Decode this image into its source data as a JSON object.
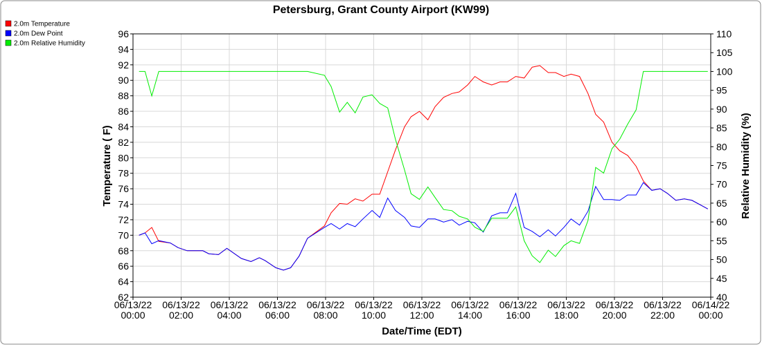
{
  "chart_data": {
    "type": "line",
    "title": "Petersburg, Grant County Airport (KW99)",
    "x_label": "Date/Time (EDT)",
    "y_label": "Temperature ( F)",
    "y2_label": "Relative Humidity (%)",
    "x": [
      0.25,
      0.5,
      0.78,
      1.07,
      1.55,
      1.87,
      2.25,
      2.9,
      3.15,
      3.55,
      3.9,
      4.5,
      4.9,
      5.25,
      5.5,
      5.93,
      6.25,
      6.55,
      6.9,
      7.25,
      7.95,
      8.23,
      8.58,
      8.9,
      9.23,
      9.55,
      9.93,
      10.25,
      10.58,
      10.9,
      11.28,
      11.55,
      11.9,
      12.25,
      12.55,
      12.9,
      13.25,
      13.55,
      13.9,
      14.2,
      14.55,
      14.9,
      15.25,
      15.55,
      15.9,
      16.25,
      16.58,
      16.9,
      17.25,
      17.55,
      17.9,
      18.2,
      18.55,
      18.9,
      19.22,
      19.55,
      19.9,
      20.22,
      20.55,
      20.9,
      21.2,
      21.55,
      21.9,
      22.2,
      22.55,
      22.9,
      23.22,
      23.88
    ],
    "xlim": [
      0,
      24
    ],
    "xticks": [
      {
        "value": 0,
        "label": "06/13/22\n00:00"
      },
      {
        "value": 2,
        "label": "06/13/22\n02:00"
      },
      {
        "value": 4,
        "label": "06/13/22\n04:00"
      },
      {
        "value": 6,
        "label": "06/13/22\n06:00"
      },
      {
        "value": 8,
        "label": "06/13/22\n08:00"
      },
      {
        "value": 10,
        "label": "06/13/22\n10:00"
      },
      {
        "value": 12,
        "label": "06/13/22\n12:00"
      },
      {
        "value": 14,
        "label": "06/13/22\n14:00"
      },
      {
        "value": 16,
        "label": "06/13/22\n16:00"
      },
      {
        "value": 18,
        "label": "06/13/22\n18:00"
      },
      {
        "value": 20,
        "label": "06/13/22\n20:00"
      },
      {
        "value": 22,
        "label": "06/13/22\n22:00"
      },
      {
        "value": 24,
        "label": "06/14/22\n00:00"
      }
    ],
    "ylim": [
      62,
      96
    ],
    "yticks": [
      62,
      64,
      66,
      68,
      70,
      72,
      74,
      76,
      78,
      80,
      82,
      84,
      86,
      88,
      90,
      92,
      94,
      96
    ],
    "y2lim": [
      40,
      110
    ],
    "y2ticks": [
      40,
      45,
      50,
      55,
      60,
      65,
      70,
      75,
      80,
      85,
      90,
      95,
      100,
      105,
      110
    ],
    "grid": true,
    "series": [
      {
        "name": "2.0m Temperature",
        "color": "#ff0000",
        "values": [
          70.0,
          70.3,
          71.0,
          69.2,
          69.0,
          68.4,
          68.0,
          68.0,
          67.6,
          67.5,
          68.3,
          67.0,
          66.6,
          67.1,
          66.7,
          65.8,
          65.5,
          65.8,
          67.3,
          69.6,
          71.2,
          72.9,
          74.1,
          74.0,
          74.7,
          74.4,
          75.3,
          75.3,
          78.2,
          81.0,
          84.0,
          85.3,
          86.0,
          84.9,
          86.6,
          87.8,
          88.3,
          88.5,
          89.4,
          90.5,
          89.8,
          89.4,
          89.8,
          89.8,
          90.5,
          90.3,
          91.7,
          91.9,
          91.0,
          91.0,
          90.5,
          90.8,
          90.5,
          88.3,
          85.6,
          84.6,
          82.0,
          80.9,
          80.3,
          78.9,
          77.0,
          75.8,
          76.0,
          75.4,
          74.5,
          74.7,
          74.5,
          73.4
        ]
      },
      {
        "name": "2.0m Dew Point",
        "color": "#0000ff",
        "values": [
          70.0,
          70.3,
          68.9,
          69.3,
          69.0,
          68.4,
          68.0,
          68.0,
          67.6,
          67.5,
          68.3,
          67.0,
          66.6,
          67.1,
          66.7,
          65.8,
          65.5,
          65.8,
          67.3,
          69.6,
          71.0,
          71.5,
          70.8,
          71.5,
          71.1,
          72.1,
          73.2,
          72.3,
          74.8,
          73.2,
          72.3,
          71.2,
          71.0,
          72.1,
          72.1,
          71.7,
          72.0,
          71.3,
          71.8,
          71.6,
          70.4,
          72.5,
          72.9,
          72.9,
          75.4,
          71.0,
          70.5,
          69.8,
          70.7,
          69.9,
          71.0,
          72.1,
          71.3,
          73.1,
          76.3,
          74.6,
          74.6,
          74.5,
          75.2,
          75.2,
          76.8,
          75.8,
          76.0,
          75.4,
          74.5,
          74.7,
          74.5,
          73.4
        ]
      },
      {
        "name": "2.0m Relative Humidity",
        "color": "#00ee00",
        "axis": "y2",
        "values": [
          100,
          100,
          93.5,
          100,
          100,
          100,
          100,
          100,
          100,
          100,
          100,
          100,
          100,
          100,
          100,
          100,
          100,
          100,
          100,
          100,
          99,
          96,
          89.2,
          91.8,
          89.0,
          93.2,
          93.8,
          91.5,
          90.3,
          82,
          73.8,
          67.5,
          66.0,
          69.3,
          66.5,
          63.3,
          63.0,
          61.5,
          60.8,
          58.6,
          57.5,
          61.0,
          61.0,
          61.0,
          64.0,
          55.0,
          51.0,
          49.2,
          52.5,
          50.8,
          53.7,
          55.0,
          54.3,
          60.4,
          74.5,
          73.0,
          79.5,
          82.0,
          86.0,
          89.8,
          100,
          100,
          100,
          100,
          100,
          100,
          100,
          100
        ]
      }
    ]
  }
}
